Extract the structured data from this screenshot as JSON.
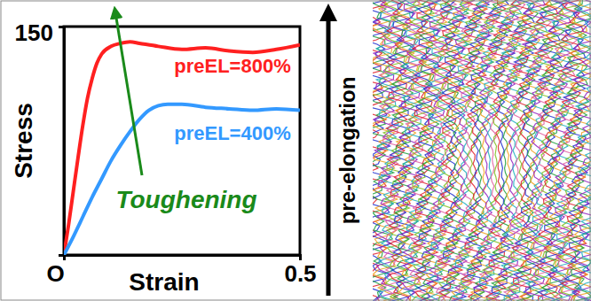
{
  "chart_data": {
    "type": "line",
    "x_label": "Strain",
    "y_label": "Stress",
    "xlim": [
      0,
      0.5
    ],
    "ylim": [
      0,
      150
    ],
    "xticks": [
      {
        "value": 0,
        "label": "O"
      },
      0.5
    ],
    "yticks": [
      150
    ],
    "grid": false,
    "series": [
      {
        "name": "preEL=800%",
        "color": "#ff2020",
        "x": [
          0,
          0.01,
          0.02,
          0.03,
          0.04,
          0.05,
          0.06,
          0.07,
          0.08,
          0.1,
          0.12,
          0.14,
          0.16,
          0.2,
          0.25,
          0.3,
          0.35,
          0.4,
          0.45,
          0.5
        ],
        "values": [
          0,
          20,
          42,
          64,
          85,
          103,
          116,
          126,
          132,
          137,
          139,
          140,
          139,
          137,
          135,
          136,
          134,
          133,
          135,
          138
        ]
      },
      {
        "name": "preEL=400%",
        "color": "#3399ff",
        "x": [
          0,
          0.02,
          0.04,
          0.06,
          0.08,
          0.1,
          0.12,
          0.14,
          0.16,
          0.18,
          0.2,
          0.22,
          0.25,
          0.3,
          0.35,
          0.4,
          0.45,
          0.5
        ],
        "values": [
          0,
          12,
          25,
          38,
          50,
          62,
          72,
          81,
          89,
          95,
          98,
          99,
          99,
          97,
          96,
          95,
          96,
          95
        ]
      }
    ],
    "annotations": [
      {
        "text": "Toughening",
        "color": "#1a8a1a"
      },
      {
        "text": "pre-elongation",
        "color": "#000000"
      }
    ]
  }
}
